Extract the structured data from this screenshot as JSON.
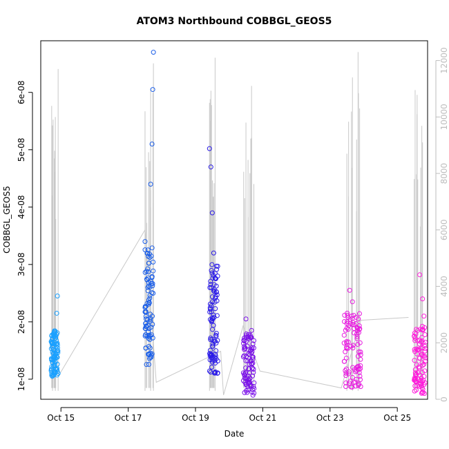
{
  "chart_data": {
    "type": "scatter",
    "title": "ATOM3 Northbound COBBGL_GEOS5",
    "xlabel": "Date",
    "ylabel": "COBBGL_GEOS5",
    "x_ticks": [
      "Oct 15",
      "Oct 17",
      "Oct 19",
      "Oct 21",
      "Oct 23",
      "Oct 25"
    ],
    "y_ticks": [
      "1e-08",
      "2e-08",
      "3e-08",
      "4e-08",
      "5e-08",
      "6e-08"
    ],
    "y2_ticks": [
      "0",
      "2000",
      "4000",
      "6000",
      "8000",
      "10000",
      "12000"
    ],
    "xlim_days": [
      14.4,
      25.9
    ],
    "ylim": [
      6.5e-09,
      6.9e-08
    ],
    "y2lim": [
      0,
      12700
    ],
    "colors": {
      "cluster1": "#1aa0ff",
      "cluster2": "#1b5ee8",
      "cluster3": "#2a1ae8",
      "cluster4": "#7a10e8",
      "cluster5": "#e81ae0",
      "cluster6": "#ff1adb",
      "altitude": "#c8c8c8"
    },
    "series": [
      {
        "color": "#1aa0ff",
        "x_start": "Oct 14 17:00",
        "x_end": "Oct 14 22:00",
        "y_band": [
          1.05e-08,
          1.85e-08
        ],
        "points": [
          [
            "Oct 14 17:00",
            1.15e-08
          ],
          [
            "Oct 14 18:00",
            1.55e-08
          ],
          [
            "Oct 14 19:00",
            1.75e-08
          ],
          [
            "Oct 14 20:00",
            1.3e-08
          ],
          [
            "Oct 14 21:00",
            2.15e-08
          ],
          [
            "Oct 14 21:30",
            2.45e-08
          ],
          [
            "Oct 14 22:00",
            1.1e-08
          ]
        ]
      },
      {
        "color": "#1b5ee8",
        "x_start": "Oct 17 12:00",
        "x_end": "Oct 17 18:00",
        "y_band": [
          1.25e-08,
          3.3e-08
        ],
        "points": [
          [
            "Oct 17 12:00",
            3.4e-08
          ],
          [
            "Oct 17 14:00",
            2.6e-08
          ],
          [
            "Oct 17 16:00",
            4.4e-08
          ],
          [
            "Oct 17 17:00",
            5.1e-08
          ],
          [
            "Oct 17 17:30",
            6.05e-08
          ],
          [
            "Oct 17 18:00",
            6.7e-08
          ]
        ]
      },
      {
        "color": "#2a1ae8",
        "x_start": "Oct 19 10:00",
        "x_end": "Oct 19 16:00",
        "y_band": [
          1.1e-08,
          3e-08
        ],
        "points": [
          [
            "Oct 19 10:00",
            5.02e-08
          ],
          [
            "Oct 19 11:00",
            4.7e-08
          ],
          [
            "Oct 19 12:00",
            3.9e-08
          ],
          [
            "Oct 19 13:00",
            3.2e-08
          ],
          [
            "Oct 19 15:00",
            1.8e-08
          ]
        ]
      },
      {
        "color": "#7a10e8",
        "x_start": "Oct 20 10:00",
        "x_end": "Oct 20 18:00",
        "y_band": [
          7.5e-09,
          1.8e-08
        ],
        "points": [
          [
            "Oct 20 12:00",
            2.05e-08
          ],
          [
            "Oct 20 16:00",
            1.85e-08
          ],
          [
            "Oct 20 17:00",
            7.2e-09
          ]
        ]
      },
      {
        "color": "#e81ae0",
        "x_start": "Oct 23 10:00",
        "x_end": "Oct 23 22:00",
        "y_band": [
          8.5e-09,
          2.2e-08
        ],
        "points": [
          [
            "Oct 23 14:00",
            2.55e-08
          ],
          [
            "Oct 23 16:00",
            2.35e-08
          ],
          [
            "Oct 23 20:00",
            1.4e-08
          ]
        ]
      },
      {
        "color": "#ff1adb",
        "x_start": "Oct 25 12:00",
        "x_end": "Oct 25 20:00",
        "y_band": [
          7.5e-09,
          1.95e-08
        ],
        "points": [
          [
            "Oct 25 16:00",
            2.82e-08
          ],
          [
            "Oct 25 18:00",
            2.4e-08
          ],
          [
            "Oct 25 19:00",
            2.1e-08
          ]
        ]
      }
    ],
    "altitude_series": {
      "axis": "right",
      "color": "#c8c8c8",
      "spikes": [
        [
          "Oct 14 18:00",
          9700
        ],
        [
          "Oct 14 20:00",
          10000
        ],
        [
          "Oct 14 22:00",
          11700
        ],
        [
          "Oct 17 12:00",
          10200
        ],
        [
          "Oct 17 16:00",
          11000
        ],
        [
          "Oct 17 18:00",
          11900
        ],
        [
          "Oct 19 10:00",
          10500
        ],
        [
          "Oct 19 14:00",
          12100
        ],
        [
          "Oct 20 12:00",
          9800
        ],
        [
          "Oct 20 16:00",
          11100
        ],
        [
          "Oct 23 12:00",
          8700
        ],
        [
          "Oct 23 16:00",
          11400
        ],
        [
          "Oct 23 20:00",
          12300
        ],
        [
          "Oct 25 14:00",
          10100
        ],
        [
          "Oct 25 18:00",
          9100
        ]
      ],
      "connections": [
        [
          "Oct 14 22:00",
          800
        ],
        [
          "Oct 17 12:00",
          6000
        ],
        [
          "Oct 17 20:00",
          600
        ],
        [
          "Oct 19 18:00",
          1700
        ],
        [
          "Oct 19 20:00",
          150
        ],
        [
          "Oct 20 10:00",
          2600
        ],
        [
          "Oct 20 22:00",
          1000
        ],
        [
          "Oct 23 08:00",
          400
        ],
        [
          "Oct 23 22:00",
          2800
        ],
        [
          "Oct 25 08:00",
          2900
        ]
      ]
    }
  }
}
